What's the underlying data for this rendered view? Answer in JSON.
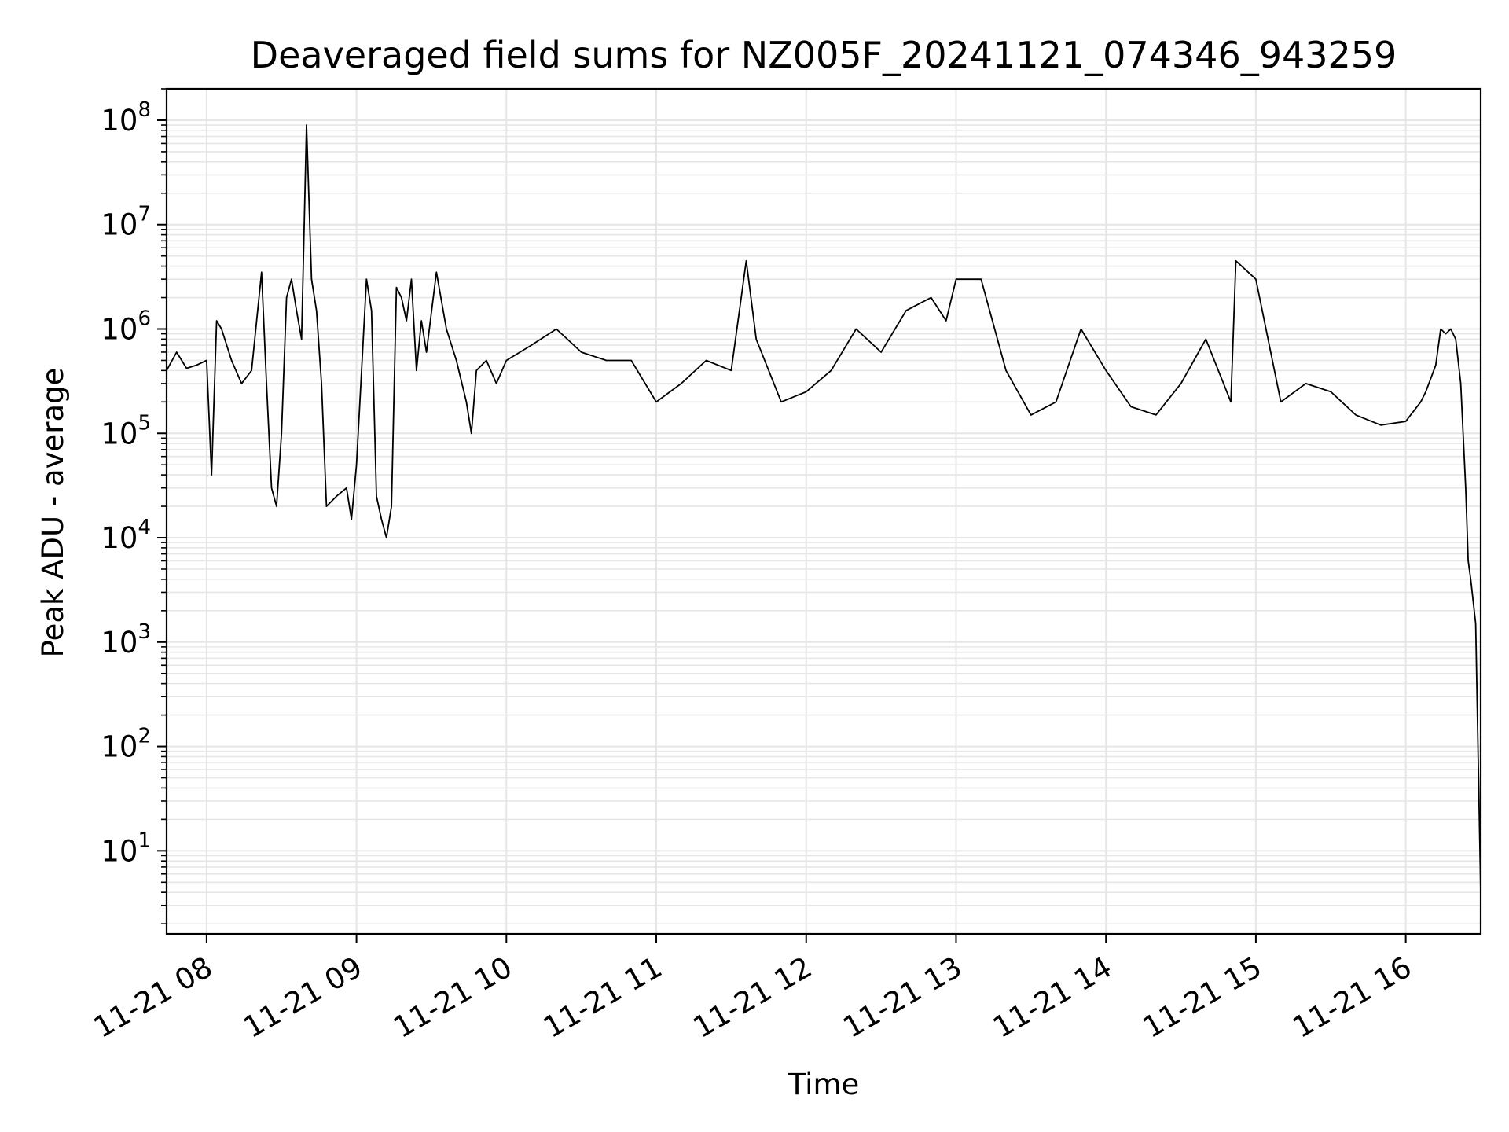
{
  "chart_data": {
    "type": "line",
    "title": "Deaveraged field sums for NZ005F_20241121_074346_943259",
    "xlabel": "Time",
    "ylabel": "Peak ADU - average",
    "yscale": "log",
    "xlim": [
      "2024-11-21 07:44",
      "2024-11-21 16:30"
    ],
    "ylim": [
      1.6,
      200000000
    ],
    "grid": true,
    "grid_color": "#e6e6e6",
    "line_color": "#000000",
    "x_ticks": [
      {
        "value": "2024-11-21 08:00",
        "label": "11-21 08"
      },
      {
        "value": "2024-11-21 09:00",
        "label": "11-21 09"
      },
      {
        "value": "2024-11-21 10:00",
        "label": "11-21 10"
      },
      {
        "value": "2024-11-21 11:00",
        "label": "11-21 11"
      },
      {
        "value": "2024-11-21 12:00",
        "label": "11-21 12"
      },
      {
        "value": "2024-11-21 13:00",
        "label": "11-21 13"
      },
      {
        "value": "2024-11-21 14:00",
        "label": "11-21 14"
      },
      {
        "value": "2024-11-21 15:00",
        "label": "11-21 15"
      },
      {
        "value": "2024-11-21 16:00",
        "label": "11-21 16"
      }
    ],
    "y_ticks": [
      {
        "value": 10,
        "base": "10",
        "exp": "1"
      },
      {
        "value": 100,
        "base": "10",
        "exp": "2"
      },
      {
        "value": 1000,
        "base": "10",
        "exp": "3"
      },
      {
        "value": 10000,
        "base": "10",
        "exp": "4"
      },
      {
        "value": 100000,
        "base": "10",
        "exp": "5"
      },
      {
        "value": 1000000,
        "base": "10",
        "exp": "6"
      },
      {
        "value": 10000000,
        "base": "10",
        "exp": "7"
      },
      {
        "value": 100000000,
        "base": "10",
        "exp": "8"
      }
    ],
    "series": [
      {
        "x": [
          "2024-11-21 07:44",
          "2024-11-21 07:48",
          "2024-11-21 07:52",
          "2024-11-21 07:56",
          "2024-11-21 08:00",
          "2024-11-21 08:02",
          "2024-11-21 08:04",
          "2024-11-21 08:06",
          "2024-11-21 08:10",
          "2024-11-21 08:14",
          "2024-11-21 08:18",
          "2024-11-21 08:22",
          "2024-11-21 08:24",
          "2024-11-21 08:26",
          "2024-11-21 08:28",
          "2024-11-21 08:30",
          "2024-11-21 08:32",
          "2024-11-21 08:34",
          "2024-11-21 08:36",
          "2024-11-21 08:38",
          "2024-11-21 08:40",
          "2024-11-21 08:42",
          "2024-11-21 08:44",
          "2024-11-21 08:46",
          "2024-11-21 08:48",
          "2024-11-21 08:52",
          "2024-11-21 08:56",
          "2024-11-21 08:58",
          "2024-11-21 09:00",
          "2024-11-21 09:04",
          "2024-11-21 09:06",
          "2024-11-21 09:08",
          "2024-11-21 09:10",
          "2024-11-21 09:12",
          "2024-11-21 09:14",
          "2024-11-21 09:16",
          "2024-11-21 09:18",
          "2024-11-21 09:20",
          "2024-11-21 09:22",
          "2024-11-21 09:24",
          "2024-11-21 09:26",
          "2024-11-21 09:28",
          "2024-11-21 09:32",
          "2024-11-21 09:36",
          "2024-11-21 09:40",
          "2024-11-21 09:44",
          "2024-11-21 09:46",
          "2024-11-21 09:48",
          "2024-11-21 09:52",
          "2024-11-21 09:56",
          "2024-11-21 10:00",
          "2024-11-21 10:10",
          "2024-11-21 10:20",
          "2024-11-21 10:30",
          "2024-11-21 10:40",
          "2024-11-21 10:50",
          "2024-11-21 11:00",
          "2024-11-21 11:10",
          "2024-11-21 11:20",
          "2024-11-21 11:30",
          "2024-11-21 11:36",
          "2024-11-21 11:40",
          "2024-11-21 11:50",
          "2024-11-21 12:00",
          "2024-11-21 12:10",
          "2024-11-21 12:20",
          "2024-11-21 12:30",
          "2024-11-21 12:40",
          "2024-11-21 12:50",
          "2024-11-21 12:56",
          "2024-11-21 13:00",
          "2024-11-21 13:10",
          "2024-11-21 13:20",
          "2024-11-21 13:30",
          "2024-11-21 13:40",
          "2024-11-21 13:50",
          "2024-11-21 14:00",
          "2024-11-21 14:10",
          "2024-11-21 14:20",
          "2024-11-21 14:30",
          "2024-11-21 14:40",
          "2024-11-21 14:50",
          "2024-11-21 14:52",
          "2024-11-21 15:00",
          "2024-11-21 15:10",
          "2024-11-21 15:20",
          "2024-11-21 15:30",
          "2024-11-21 15:40",
          "2024-11-21 15:50",
          "2024-11-21 16:00",
          "2024-11-21 16:06",
          "2024-11-21 16:08",
          "2024-11-21 16:12",
          "2024-11-21 16:14",
          "2024-11-21 16:16",
          "2024-11-21 16:18",
          "2024-11-21 16:20",
          "2024-11-21 16:22",
          "2024-11-21 16:24",
          "2024-11-21 16:25",
          "2024-11-21 16:26",
          "2024-11-21 16:28",
          "2024-11-21 16:30"
        ],
        "y": [
          400000,
          600000,
          420000,
          450000,
          500000,
          40000,
          1200000,
          1000000,
          500000,
          300000,
          400000,
          3500000,
          300000,
          30000,
          20000,
          100000,
          2000000,
          3000000,
          1500000,
          800000,
          90000000,
          3000000,
          1500000,
          300000,
          20000,
          25000,
          30000,
          15000,
          50000,
          3000000,
          1500000,
          25000,
          15000,
          10000,
          20000,
          2500000,
          2000000,
          1200000,
          3000000,
          400000,
          1200000,
          600000,
          3500000,
          1000000,
          500000,
          200000,
          100000,
          400000,
          500000,
          300000,
          500000,
          700000,
          1000000,
          600000,
          500000,
          500000,
          200000,
          300000,
          500000,
          400000,
          4500000,
          800000,
          200000,
          250000,
          400000,
          1000000,
          600000,
          1500000,
          2000000,
          1200000,
          3000000,
          3000000,
          400000,
          150000,
          200000,
          1000000,
          400000,
          180000,
          150000,
          300000,
          800000,
          200000,
          4500000,
          3000000,
          200000,
          300000,
          250000,
          150000,
          120000,
          130000,
          200000,
          250000,
          450000,
          1000000,
          900000,
          1000000,
          800000,
          300000,
          30000,
          6000,
          4000,
          1500,
          4
        ]
      }
    ]
  }
}
